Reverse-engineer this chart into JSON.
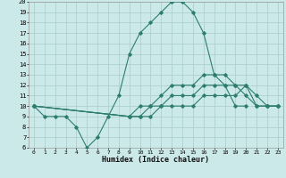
{
  "xlabel": "Humidex (Indice chaleur)",
  "ylabel": "",
  "xlim": [
    -0.5,
    23.5
  ],
  "ylim": [
    6,
    20
  ],
  "background_color": "#cce9e9",
  "grid_color": "#aacccc",
  "line_color": "#2d7d6f",
  "curves": [
    {
      "x": [
        0,
        1,
        2,
        3,
        4,
        5,
        6,
        7,
        8,
        9,
        10,
        11,
        12,
        13,
        14,
        15,
        16,
        17,
        18,
        19,
        20
      ],
      "y": [
        10,
        9,
        9,
        9,
        8,
        6,
        7,
        9,
        11,
        15,
        17,
        18,
        19,
        20,
        20,
        19,
        17,
        13,
        12,
        10,
        10
      ]
    },
    {
      "x": [
        0,
        9,
        10,
        11,
        12,
        13,
        14,
        15,
        16,
        17,
        18,
        19,
        20,
        21,
        22,
        23
      ],
      "y": [
        10,
        9,
        10,
        10,
        11,
        12,
        12,
        12,
        13,
        13,
        13,
        12,
        11,
        10,
        10,
        10
      ]
    },
    {
      "x": [
        0,
        9,
        10,
        11,
        12,
        13,
        14,
        15,
        16,
        17,
        18,
        19,
        20,
        21,
        22,
        23
      ],
      "y": [
        10,
        9,
        9,
        10,
        10,
        11,
        11,
        11,
        12,
        12,
        12,
        12,
        12,
        11,
        10,
        10
      ]
    },
    {
      "x": [
        0,
        9,
        10,
        11,
        12,
        13,
        14,
        15,
        16,
        17,
        18,
        19,
        20,
        21,
        22,
        23
      ],
      "y": [
        10,
        9,
        9,
        9,
        10,
        10,
        10,
        10,
        11,
        11,
        11,
        11,
        12,
        10,
        10,
        10
      ]
    }
  ],
  "yticks": [
    6,
    7,
    8,
    9,
    10,
    11,
    12,
    13,
    14,
    15,
    16,
    17,
    18,
    19,
    20
  ],
  "xticks": [
    0,
    1,
    2,
    3,
    4,
    5,
    6,
    7,
    8,
    9,
    10,
    11,
    12,
    13,
    14,
    15,
    16,
    17,
    18,
    19,
    20,
    21,
    22,
    23
  ]
}
